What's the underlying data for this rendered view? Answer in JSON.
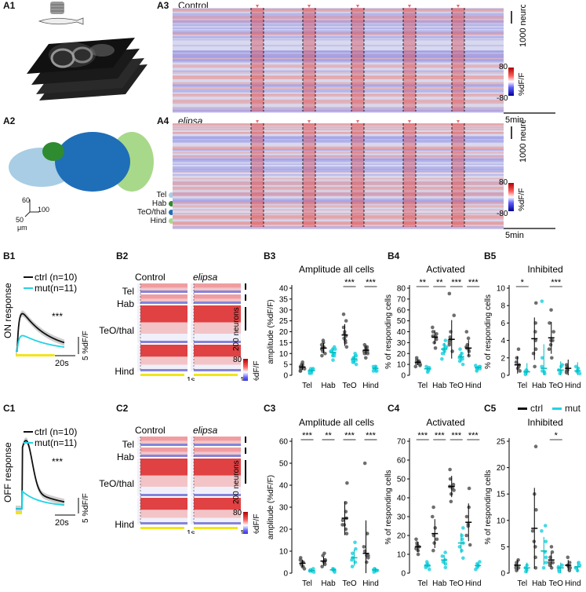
{
  "panels": {
    "A1": "A1",
    "A2": "A2",
    "A3": "A3",
    "A4": "A4",
    "B1": "B1",
    "B2": "B2",
    "B3": "B3",
    "B4": "B4",
    "B5": "B5",
    "C1": "C1",
    "C2": "C2",
    "C3": "C3",
    "C4": "C4",
    "C5": "C5"
  },
  "A3": {
    "title": "Control",
    "scale": "1000 neurons",
    "cb_title": "%dF/F",
    "cb_max": "80",
    "cb_min": "-80",
    "time": "5min"
  },
  "A4": {
    "title": "elipsa",
    "scale": "1000 neurons",
    "cb_title": "%dF/F",
    "cb_max": "80",
    "cb_min": "-80",
    "time": "5min"
  },
  "A2": {
    "legend": [
      {
        "label": "Tel",
        "color": "#a8cde4"
      },
      {
        "label": "Hab",
        "color": "#2e8b30"
      },
      {
        "label": "TeO/thal",
        "color": "#1f6eb8"
      },
      {
        "label": "Hind",
        "color": "#a8d98a"
      }
    ],
    "axis_60": "60",
    "axis_100": "100",
    "axis_50": "50",
    "unit": "μm"
  },
  "B1": {
    "ylabel": "ON response",
    "legend_ctrl": "ctrl (n=10)",
    "legend_mut": "mut(n=11)",
    "sig": "***",
    "scale_y": "5 %dF/F",
    "scale_x": "20s"
  },
  "C1": {
    "ylabel": "OFF response",
    "legend_ctrl": "ctrl (n=10)",
    "legend_mut": "mut(n=11)",
    "sig": "***",
    "scale_y": "5 %dF/F",
    "scale_x": "20s"
  },
  "B2": {
    "col_ctrl": "Control",
    "col_mut": "elipsa",
    "regions": [
      "Tel",
      "Hab",
      "TeO/thal",
      "Hind"
    ],
    "scale": "200 neurons",
    "cb_title": "%dF/F",
    "cb_max": "80",
    "cb_min": "-80",
    "time": "1s"
  },
  "C2": {
    "col_ctrl": "Control",
    "col_mut": "elipsa",
    "regions": [
      "Tel",
      "Hab",
      "TeO/thal",
      "Hind"
    ],
    "scale": "200 neurons",
    "cb_title": "%dF/F",
    "cb_max": "80",
    "cb_min": "-80",
    "time": "1s"
  },
  "legend_bottom": {
    "ctrl": "ctrl",
    "mut": "mut"
  },
  "colors": {
    "ctrl": "#111111",
    "mut": "#22d3e3",
    "stim": "#f2e41a"
  },
  "chart_data": [
    {
      "id": "B3",
      "type": "scatter",
      "title": "Amplitude all cells",
      "ylabel": "amplitude (%dF/F)",
      "ylim": [
        0,
        40
      ],
      "yticks": [
        "0",
        "5",
        "10",
        "15",
        "20",
        "25",
        "30",
        "35",
        "40"
      ],
      "categories": [
        "Tel",
        "Hab",
        "TeO",
        "Hind"
      ],
      "series": [
        {
          "name": "ctrl",
          "means": [
            3.8,
            12.5,
            18.5,
            11.5
          ],
          "points": [
            [
              2,
              3,
              4,
              5,
              6,
              3,
              4,
              5,
              2,
              3
            ],
            [
              9,
              11,
              12,
              13,
              14,
              16,
              12,
              10,
              15,
              13
            ],
            [
              13,
              15,
              17,
              18,
              20,
              22,
              25,
              28,
              16,
              19
            ],
            [
              8,
              10,
              11,
              12,
              13,
              14,
              11,
              12,
              10,
              13
            ]
          ]
        },
        {
          "name": "mut",
          "means": [
            2.2,
            10.5,
            7.5,
            3.2
          ],
          "points": [
            [
              1,
              2,
              3,
              2,
              1,
              3,
              2,
              2,
              3,
              2,
              1
            ],
            [
              7,
              9,
              10,
              11,
              13,
              12,
              10,
              9,
              11,
              12,
              10
            ],
            [
              5,
              6,
              7,
              8,
              9,
              10,
              7,
              6,
              8,
              9,
              7
            ],
            [
              2,
              3,
              4,
              3,
              2,
              4,
              3,
              3,
              2,
              4,
              3
            ]
          ]
        }
      ],
      "significance": [
        "",
        "",
        "***",
        "***"
      ]
    },
    {
      "id": "B4",
      "type": "scatter",
      "title": "Activated",
      "ylabel": "% of responding cells",
      "ylim": [
        0,
        80
      ],
      "yticks": [
        "0",
        "10",
        "20",
        "30",
        "40",
        "50",
        "60",
        "70",
        "80"
      ],
      "categories": [
        "Tel",
        "Hab",
        "TeO",
        "Hind"
      ],
      "series": [
        {
          "name": "ctrl",
          "means": [
            12,
            35,
            33,
            25
          ],
          "points": [
            [
              8,
              10,
              12,
              14,
              16,
              9,
              11,
              13
            ],
            [
              25,
              30,
              33,
              36,
              40,
              44,
              35,
              38
            ],
            [
              22,
              28,
              30,
              35,
              40,
              55,
              75,
              32,
              33
            ],
            [
              18,
              22,
              25,
              28,
              34,
              40,
              24,
              26
            ]
          ]
        },
        {
          "name": "mut",
          "means": [
            6,
            24,
            17,
            7
          ],
          "points": [
            [
              3,
              4,
              5,
              6,
              8,
              7,
              5,
              6
            ],
            [
              15,
              20,
              24,
              28,
              32,
              22,
              25,
              26
            ],
            [
              10,
              13,
              16,
              20,
              24,
              15,
              18,
              17
            ],
            [
              4,
              5,
              6,
              8,
              9,
              7,
              6,
              8
            ]
          ]
        }
      ],
      "significance": [
        "**",
        "**",
        "***",
        "***"
      ]
    },
    {
      "id": "B5",
      "type": "scatter",
      "title": "Inhibited",
      "ylabel": "% of responding cells",
      "ylim": [
        0,
        10
      ],
      "yticks": [
        "0",
        "2",
        "4",
        "6",
        "8",
        "10"
      ],
      "categories": [
        "Tel",
        "Hab",
        "TeO",
        "Hind"
      ],
      "series": [
        {
          "name": "ctrl",
          "means": [
            1.2,
            4.2,
            4.3,
            0.8
          ],
          "points": [
            [
              0.5,
              1,
              1.5,
              2,
              3,
              0.8,
              1.2
            ],
            [
              1,
              2.5,
              3,
              6,
              8.3,
              4,
              5
            ],
            [
              2,
              3,
              4,
              5,
              6,
              7.5,
              4,
              3.5
            ],
            [
              0.3,
              0.6,
              0.8,
              1,
              1.2,
              0.5
            ]
          ]
        },
        {
          "name": "mut",
          "means": [
            0.4,
            0.8,
            0.6,
            0.5
          ],
          "points": [
            [
              0.1,
              0.3,
              0.5,
              0.6,
              0.4
            ],
            [
              0.2,
              0.5,
              1,
              2,
              8.5,
              0.4
            ],
            [
              0.2,
              0.4,
              0.6,
              1,
              1.2
            ],
            [
              0.2,
              0.4,
              0.6,
              0.8,
              1
            ]
          ]
        }
      ],
      "significance": [
        "*",
        "",
        "***",
        ""
      ]
    },
    {
      "id": "C3",
      "type": "scatter",
      "title": "Amplitude all cells",
      "ylabel": "amplitude (%dF/F)",
      "ylim": [
        0,
        60
      ],
      "yticks": [
        "0",
        "10",
        "20",
        "30",
        "40",
        "50",
        "60"
      ],
      "categories": [
        "Tel",
        "Hab",
        "TeO",
        "Hind"
      ],
      "series": [
        {
          "name": "ctrl",
          "means": [
            4.5,
            5.5,
            25,
            9
          ],
          "points": [
            [
              2,
              3,
              4,
              5,
              6,
              7,
              3,
              5
            ],
            [
              3,
              4,
              5,
              6,
              8,
              9,
              5,
              6
            ],
            [
              18,
              20,
              22,
              25,
              28,
              32,
              41,
              22,
              24
            ],
            [
              5,
              7,
              8,
              10,
              12,
              18,
              50,
              8
            ]
          ]
        },
        {
          "name": "mut",
          "means": [
            1.2,
            1.5,
            7,
            1.5
          ],
          "points": [
            [
              0.5,
              1,
              1.5,
              2,
              1,
              1.2
            ],
            [
              0.5,
              1,
              1.5,
              2,
              1.5,
              1.8
            ],
            [
              3,
              5,
              7,
              9,
              11,
              14,
              6
            ],
            [
              0.5,
              1,
              1.5,
              2,
              1.8,
              1.2
            ]
          ]
        }
      ],
      "significance": [
        "***",
        "**",
        "***",
        "***"
      ]
    },
    {
      "id": "C4",
      "type": "scatter",
      "title": "Activated",
      "ylabel": "% of responding cells",
      "ylim": [
        0,
        70
      ],
      "yticks": [
        "0",
        "10",
        "20",
        "30",
        "40",
        "50",
        "60",
        "70"
      ],
      "categories": [
        "Tel",
        "Hab",
        "TeO",
        "Hind"
      ],
      "series": [
        {
          "name": "ctrl",
          "means": [
            14,
            21,
            46,
            27
          ],
          "points": [
            [
              10,
              12,
              14,
              15,
              16,
              18,
              13
            ],
            [
              12,
              16,
              20,
              24,
              30,
              35,
              18
            ],
            [
              38,
              42,
              45,
              47,
              50,
              55,
              44,
              46
            ],
            [
              15,
              20,
              25,
              30,
              35,
              45,
              26
            ]
          ]
        },
        {
          "name": "mut",
          "means": [
            4,
            7,
            16,
            4
          ],
          "points": [
            [
              2,
              3,
              4,
              5,
              6,
              4
            ],
            [
              3,
              5,
              7,
              9,
              11,
              6
            ],
            [
              8,
              12,
              16,
              20,
              24,
              14,
              18
            ],
            [
              2,
              3,
              4,
              5,
              6,
              4
            ]
          ]
        }
      ],
      "significance": [
        "***",
        "***",
        "***",
        "***"
      ]
    },
    {
      "id": "C5",
      "type": "scatter",
      "title": "Inhibited",
      "ylabel": "% of responding cells",
      "ylim": [
        0,
        25
      ],
      "yticks": [
        "0",
        "5",
        "10",
        "15",
        "20",
        "25"
      ],
      "categories": [
        "Tel",
        "Hab",
        "TeO",
        "Hind"
      ],
      "series": [
        {
          "name": "ctrl",
          "means": [
            1.5,
            8.5,
            2.5,
            1.5
          ],
          "points": [
            [
              0.5,
              1,
              1.5,
              2,
              2.5,
              1
            ],
            [
              1,
              3,
              5,
              8,
              12,
              15,
              24,
              6
            ],
            [
              1,
              1.5,
              2,
              3,
              4,
              5,
              2
            ],
            [
              0.5,
              1,
              1.5,
              2,
              3,
              1.2
            ]
          ]
        },
        {
          "name": "mut",
          "means": [
            1.0,
            4.2,
            1.0,
            1.2
          ],
          "points": [
            [
              0.3,
              0.6,
              1,
              1.5,
              0.8
            ],
            [
              1,
              2,
              4,
              6,
              8,
              9,
              3
            ],
            [
              0.3,
              0.6,
              1,
              1.5,
              1.2
            ],
            [
              0.5,
              1,
              1.5,
              2,
              1
            ]
          ]
        }
      ],
      "significance": [
        "",
        "",
        "*",
        ""
      ]
    }
  ]
}
